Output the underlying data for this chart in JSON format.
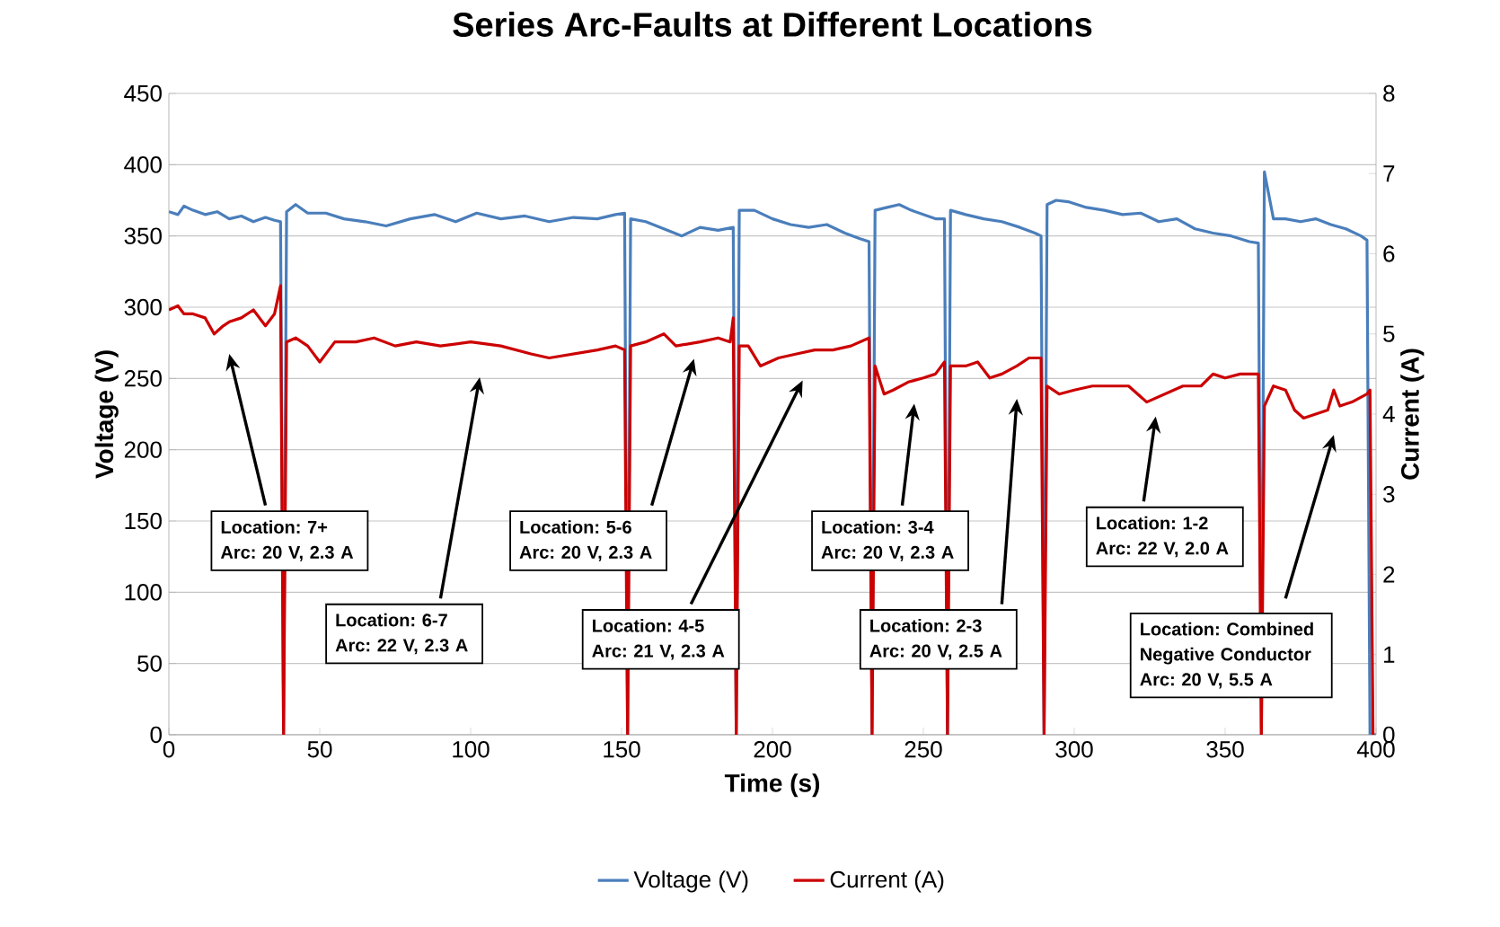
{
  "chart_data": {
    "type": "line",
    "title": "Series Arc-Faults at Different Locations",
    "xlabel": "Time (s)",
    "ylabel": "Voltage (V)",
    "y2label": "Current (A)",
    "xlim": [
      0,
      400
    ],
    "xticks": [
      0,
      50,
      100,
      150,
      200,
      250,
      300,
      350,
      400
    ],
    "ylim": [
      0,
      450
    ],
    "yticks": [
      0,
      50,
      100,
      150,
      200,
      250,
      300,
      350,
      400,
      450
    ],
    "y2lim": [
      0,
      8
    ],
    "y2ticks": [
      0,
      1,
      2,
      3,
      4,
      5,
      6,
      7,
      8
    ],
    "grid": "y",
    "legend": "bottom",
    "line_style": "solid",
    "series": [
      {
        "name": "Voltage (V)",
        "color": "#4a7ebb",
        "x": [
          0,
          3,
          5,
          8,
          12,
          16,
          20,
          24,
          28,
          32,
          35,
          37,
          38,
          39,
          42,
          46,
          52,
          58,
          65,
          72,
          80,
          88,
          95,
          102,
          110,
          118,
          126,
          134,
          142,
          148,
          151,
          152,
          153,
          158,
          164,
          170,
          176,
          182,
          187,
          188,
          189,
          194,
          200,
          206,
          212,
          218,
          224,
          229,
          232,
          233,
          234,
          238,
          242,
          246,
          250,
          254,
          257,
          258,
          259,
          264,
          270,
          276,
          282,
          287,
          289,
          290,
          291,
          294,
          298,
          304,
          310,
          316,
          322,
          328,
          334,
          340,
          346,
          352,
          358,
          361,
          362,
          363,
          366,
          370,
          375,
          380,
          385,
          390,
          395,
          397,
          398,
          400
        ],
        "values": [
          367,
          365,
          371,
          368,
          365,
          367,
          362,
          364,
          360,
          363,
          361,
          360,
          0,
          367,
          372,
          366,
          366,
          362,
          360,
          357,
          362,
          365,
          360,
          366,
          362,
          364,
          360,
          363,
          362,
          365,
          366,
          0,
          362,
          360,
          355,
          350,
          356,
          354,
          356,
          0,
          368,
          368,
          362,
          358,
          356,
          358,
          352,
          348,
          346,
          0,
          368,
          370,
          372,
          368,
          365,
          362,
          362,
          0,
          368,
          365,
          362,
          360,
          356,
          352,
          350,
          0,
          372,
          375,
          374,
          370,
          368,
          365,
          366,
          360,
          362,
          355,
          352,
          350,
          346,
          345,
          0,
          395,
          362,
          362,
          360,
          362,
          358,
          355,
          350,
          347,
          0,
          0
        ]
      },
      {
        "name": "Current (A)",
        "color": "#cc0000",
        "axis": "y2",
        "x": [
          0,
          3,
          5,
          8,
          12,
          15,
          18,
          20,
          24,
          28,
          32,
          35,
          37,
          38,
          39,
          42,
          46,
          50,
          55,
          62,
          68,
          75,
          82,
          90,
          100,
          110,
          120,
          126,
          134,
          142,
          148,
          151,
          152,
          153,
          158,
          164,
          168,
          176,
          182,
          186,
          187,
          188,
          189,
          192,
          196,
          202,
          208,
          214,
          220,
          226,
          232,
          233,
          234,
          237,
          240,
          245,
          250,
          254,
          257,
          258,
          259,
          264,
          268,
          272,
          276,
          281,
          285,
          289,
          290,
          291,
          295,
          300,
          306,
          312,
          318,
          324,
          330,
          336,
          342,
          346,
          350,
          355,
          361,
          362,
          363,
          366,
          370,
          373,
          376,
          380,
          384,
          386,
          388,
          392,
          397,
          398,
          399
        ],
        "values": [
          5.3,
          5.35,
          5.25,
          5.25,
          5.2,
          5.0,
          5.1,
          5.15,
          5.2,
          5.3,
          5.1,
          5.25,
          5.6,
          0,
          4.9,
          4.95,
          4.85,
          4.65,
          4.9,
          4.9,
          4.95,
          4.85,
          4.9,
          4.85,
          4.9,
          4.85,
          4.75,
          4.7,
          4.75,
          4.8,
          4.85,
          4.8,
          0,
          4.85,
          4.9,
          5.0,
          4.85,
          4.9,
          4.95,
          4.9,
          5.2,
          0,
          4.85,
          4.85,
          4.6,
          4.7,
          4.75,
          4.8,
          4.8,
          4.85,
          4.95,
          0,
          4.6,
          4.25,
          4.3,
          4.4,
          4.45,
          4.5,
          4.65,
          0,
          4.6,
          4.6,
          4.65,
          4.45,
          4.5,
          4.6,
          4.7,
          4.7,
          0,
          4.35,
          4.25,
          4.3,
          4.35,
          4.35,
          4.35,
          4.15,
          4.25,
          4.35,
          4.35,
          4.5,
          4.45,
          4.5,
          4.5,
          0,
          4.1,
          4.35,
          4.3,
          4.05,
          3.95,
          4.0,
          4.05,
          4.3,
          4.1,
          4.15,
          4.25,
          4.3,
          0
        ]
      }
    ],
    "annotations": [
      "Location: 7+ Arc: 20 V, 2.3 A",
      "Location: 6-7 Arc: 22 V, 2.3 A",
      "Location: 5-6 Arc: 20 V, 2.3 A",
      "Location: 4-5 Arc: 21 V, 2.3 A",
      "Location: 3-4 Arc: 20 V, 2.3 A",
      "Location: 2-3 Arc: 20 V, 2.5 A",
      "Location: 1-2 Arc: 22 V, 2.0 A",
      "Location: Combined Negative Conductor Arc: 20 V, 5.5 A"
    ]
  }
}
